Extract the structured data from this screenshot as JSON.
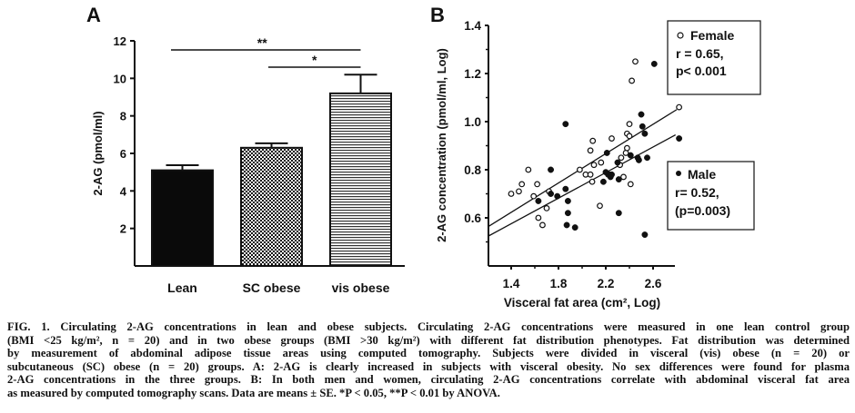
{
  "chart_data": [
    {
      "panel": "A",
      "type": "bar",
      "categories": [
        "Lean",
        "SC obese",
        "vis obese"
      ],
      "values": [
        5.1,
        6.3,
        9.2
      ],
      "errors": [
        0.27,
        0.24,
        1.0
      ],
      "patterns": [
        "solid-black",
        "checkerboard",
        "horizontal-stripes"
      ],
      "ylabel": "2-AG (pmol/ml)",
      "xlabel": "",
      "ylim": [
        0,
        12
      ],
      "yticks": [
        2,
        4,
        6,
        8,
        10,
        12
      ],
      "significance": [
        {
          "from": "Lean",
          "to": "vis obese",
          "label": "**"
        },
        {
          "from": "SC obese",
          "to": "vis obese",
          "label": "*"
        }
      ]
    },
    {
      "panel": "B",
      "type": "scatter",
      "xlabel": "Visceral fat area (cm², Log)",
      "ylabel": "2-AG concentration (pmol/ml, Log)",
      "xlim": [
        1.21,
        2.82
      ],
      "ylim": [
        0.4,
        1.4
      ],
      "xticks": [
        1.4,
        1.8,
        2.2,
        2.6
      ],
      "yticks": [
        0.6,
        0.8,
        1.0,
        1.2,
        1.4
      ],
      "series": [
        {
          "name": "Female",
          "marker": "open-circle",
          "legend_lines": [
            "r = 0.65,",
            "p< 0.001"
          ],
          "points": [
            [
              1.4,
              0.7
            ],
            [
              1.465,
              0.71
            ],
            [
              1.49,
              0.74
            ],
            [
              1.545,
              0.8
            ],
            [
              1.59,
              0.69
            ],
            [
              1.62,
              0.74
            ],
            [
              1.63,
              0.6
            ],
            [
              1.665,
              0.57
            ],
            [
              1.7,
              0.64
            ],
            [
              1.72,
              0.71
            ],
            [
              1.98,
              0.8
            ],
            [
              2.03,
              0.78
            ],
            [
              2.07,
              0.78
            ],
            [
              2.07,
              0.88
            ],
            [
              2.09,
              0.92
            ],
            [
              2.085,
              0.75
            ],
            [
              2.1,
              0.82
            ],
            [
              2.15,
              0.65
            ],
            [
              2.16,
              0.83
            ],
            [
              2.25,
              0.93
            ],
            [
              2.32,
              0.82
            ],
            [
              2.33,
              0.85
            ],
            [
              2.35,
              0.77
            ],
            [
              2.37,
              0.87
            ],
            [
              2.38,
              0.89
            ],
            [
              2.38,
              0.95
            ],
            [
              2.4,
              0.99
            ],
            [
              2.4,
              0.94
            ],
            [
              2.41,
              0.74
            ],
            [
              2.42,
              1.17
            ],
            [
              2.45,
              1.25
            ],
            [
              2.82,
              1.06
            ]
          ],
          "fit": [
            [
              1.21,
              0.565
            ],
            [
              2.8,
              1.05
            ]
          ]
        },
        {
          "name": "Male",
          "marker": "filled-circle",
          "legend_lines": [
            "r= 0.52,",
            "(p=0.003)"
          ],
          "points": [
            [
              1.63,
              0.67
            ],
            [
              1.735,
              0.8
            ],
            [
              1.735,
              0.7
            ],
            [
              1.79,
              0.69
            ],
            [
              1.86,
              0.99
            ],
            [
              1.86,
              0.72
            ],
            [
              1.88,
              0.67
            ],
            [
              1.88,
              0.62
            ],
            [
              1.87,
              0.57
            ],
            [
              1.94,
              0.56
            ],
            [
              2.18,
              0.75
            ],
            [
              2.2,
              0.79
            ],
            [
              2.21,
              0.87
            ],
            [
              2.22,
              0.78
            ],
            [
              2.23,
              0.78
            ],
            [
              2.24,
              0.77
            ],
            [
              2.25,
              0.78
            ],
            [
              2.3,
              0.83
            ],
            [
              2.31,
              0.76
            ],
            [
              2.31,
              0.62
            ],
            [
              2.41,
              0.86
            ],
            [
              2.47,
              0.85
            ],
            [
              2.48,
              0.84
            ],
            [
              2.5,
              1.03
            ],
            [
              2.51,
              0.98
            ],
            [
              2.53,
              0.95
            ],
            [
              2.55,
              0.85
            ],
            [
              2.53,
              0.53
            ],
            [
              2.61,
              1.24
            ],
            [
              2.82,
              0.93
            ]
          ],
          "fit": [
            [
              1.21,
              0.525
            ],
            [
              2.79,
              0.945
            ]
          ]
        }
      ]
    }
  ],
  "caption": {
    "lines": [
      "FIG. 1. Circulating 2-AG concentrations in lean and obese subjects. Circulating 2-AG concentrations were measured in one lean control group",
      "(BMI <25 kg/m², n = 20) and in two obese groups (BMI >30 kg/m²) with different fat distribution phenotypes. Fat distribution was determined",
      "by measurement of abdominal adipose tissue areas using computed tomography. Subjects were divided in visceral (vis) obese (n = 20) or",
      "subcutaneous (SC) obese (n = 20) groups. A: 2-AG is clearly increased in subjects with visceral obesity. No sex differences were found for plasma",
      "2-AG concentrations in the three groups. B: In both men and women, circulating 2-AG concentrations correlate with abdominal visceral fat area",
      "as measured by computed tomography scans. Data are means ± SE. *P < 0.05, **P < 0.01 by ANOVA."
    ]
  }
}
